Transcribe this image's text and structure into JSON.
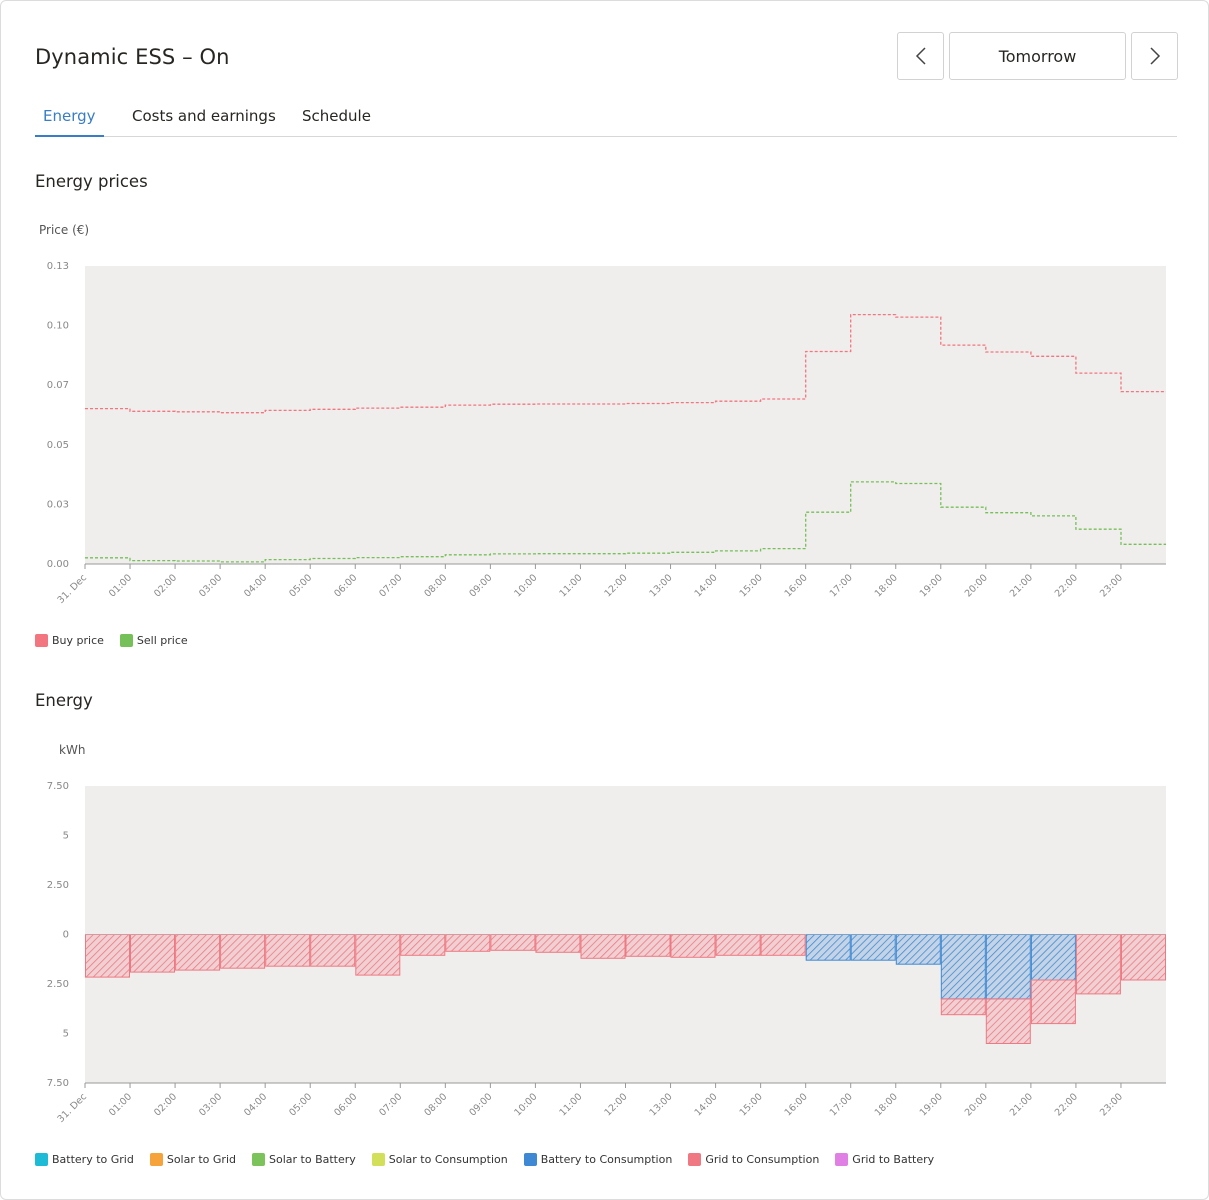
{
  "header": {
    "title": "Dynamic ESS – On",
    "date_label": "Tomorrow"
  },
  "tabs": [
    {
      "label": "Energy",
      "active": true
    },
    {
      "label": "Costs and earnings",
      "active": false
    },
    {
      "label": "Schedule",
      "active": false
    }
  ],
  "colors": {
    "accent": "#387dc5",
    "plot_bg": "#f0eeec",
    "buy": "#f2757f",
    "sell": "#76c05a"
  },
  "chart_data": [
    {
      "type": "line",
      "step": true,
      "section_title": "Energy prices",
      "ylabel": "Price (€)",
      "ylim": [
        0,
        0.13
      ],
      "yticks": [
        "0.00",
        "0.03",
        "0.05",
        "0.07",
        "0.10",
        "0.13"
      ],
      "xticks": [
        "31. Dec",
        "01:00",
        "02:00",
        "03:00",
        "04:00",
        "05:00",
        "06:00",
        "07:00",
        "08:00",
        "09:00",
        "10:00",
        "11:00",
        "12:00",
        "13:00",
        "14:00",
        "15:00",
        "16:00",
        "17:00",
        "18:00",
        "19:00",
        "20:00",
        "21:00",
        "22:00",
        "23:00"
      ],
      "series": [
        {
          "name": "Buy price",
          "color": "#f2757f",
          "values": [
            0.0678,
            0.0666,
            0.0664,
            0.066,
            0.067,
            0.0675,
            0.068,
            0.0684,
            0.0693,
            0.0697,
            0.0698,
            0.0698,
            0.07,
            0.0704,
            0.071,
            0.072,
            0.0927,
            0.1088,
            0.1077,
            0.0955,
            0.0925,
            0.0906,
            0.0833,
            0.0752
          ]
        },
        {
          "name": "Sell price",
          "color": "#76c05a",
          "values": [
            0.0027,
            0.0015,
            0.0013,
            0.0009,
            0.0019,
            0.0024,
            0.0028,
            0.0032,
            0.004,
            0.0044,
            0.0045,
            0.0045,
            0.0047,
            0.0051,
            0.0057,
            0.0067,
            0.0226,
            0.0358,
            0.0351,
            0.0248,
            0.0224,
            0.021,
            0.0152,
            0.0086
          ]
        }
      ]
    },
    {
      "type": "bar",
      "stacked": true,
      "section_title": "Energy",
      "ylabel": "kWh",
      "ylim": [
        -7.5,
        7.5
      ],
      "yticks": [
        "7.50",
        "5",
        "2.50",
        "0",
        "2.50",
        "5",
        "7.50"
      ],
      "xticks": [
        "31. Dec",
        "01:00",
        "02:00",
        "03:00",
        "04:00",
        "05:00",
        "06:00",
        "07:00",
        "08:00",
        "09:00",
        "10:00",
        "11:00",
        "12:00",
        "13:00",
        "14:00",
        "15:00",
        "16:00",
        "17:00",
        "18:00",
        "19:00",
        "20:00",
        "21:00",
        "22:00",
        "23:00"
      ],
      "series": [
        {
          "name": "Battery to Grid",
          "color": "#1ebbd7",
          "values": [
            0,
            0,
            0,
            0,
            0,
            0,
            0,
            0,
            0,
            0,
            0,
            0,
            0,
            0,
            0,
            0,
            0,
            0,
            0,
            0,
            0,
            0,
            0,
            0
          ]
        },
        {
          "name": "Solar to Grid",
          "color": "#f5a33a",
          "values": [
            0,
            0,
            0,
            0,
            0,
            0,
            0,
            0,
            0,
            0,
            0,
            0,
            0,
            0,
            0,
            0,
            0,
            0,
            0,
            0,
            0,
            0,
            0,
            0
          ]
        },
        {
          "name": "Solar to Battery",
          "color": "#7dc35c",
          "values": [
            0,
            0,
            0,
            0,
            0,
            0,
            0,
            0,
            0,
            0,
            0,
            0,
            0,
            0,
            0,
            0,
            0,
            0,
            0,
            0,
            0,
            0,
            0,
            0
          ]
        },
        {
          "name": "Solar to Consumption",
          "color": "#d2e059",
          "values": [
            0,
            0,
            0,
            0,
            0,
            0,
            0,
            0,
            0,
            0,
            0,
            0,
            0,
            0,
            0,
            0,
            0,
            0,
            0,
            0,
            0,
            0,
            0,
            0
          ]
        },
        {
          "name": "Battery to Consumption",
          "color": "#3f89d4",
          "values": [
            0,
            0,
            0,
            0,
            0,
            0,
            0,
            0,
            0,
            0,
            0,
            0,
            0,
            0,
            0,
            0,
            -1.3,
            -1.3,
            -1.5,
            -3.25,
            -3.25,
            -2.3,
            0,
            0
          ]
        },
        {
          "name": "Grid to Consumption",
          "color": "#ef7882",
          "values": [
            -2.15,
            -1.9,
            -1.8,
            -1.7,
            -1.6,
            -1.6,
            -2.05,
            -1.05,
            -0.85,
            -0.8,
            -0.9,
            -1.2,
            -1.1,
            -1.15,
            -1.05,
            -1.05,
            0,
            0,
            0,
            -0.8,
            -2.25,
            -2.2,
            -3.0,
            -2.3
          ]
        },
        {
          "name": "Grid to Battery",
          "color": "#e07fe4",
          "values": [
            0,
            0,
            0,
            0,
            0,
            0,
            0,
            0,
            0,
            0,
            0,
            0,
            0,
            0,
            0,
            0,
            0,
            0,
            0,
            0,
            0,
            0,
            0,
            0
          ]
        }
      ]
    }
  ]
}
